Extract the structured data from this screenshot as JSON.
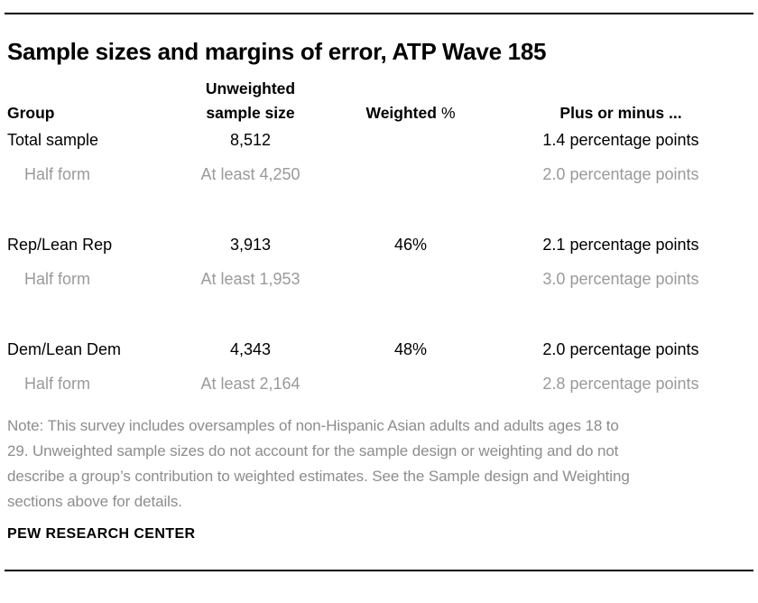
{
  "title": "Sample sizes and margins of error, ATP Wave 185",
  "table": {
    "headers": {
      "group": "Group",
      "unweighted_line1": "Unweighted",
      "unweighted_line2": "sample size",
      "weighted": "Weighted",
      "weighted_suffix": "%",
      "plus_minus": "Plus or minus ..."
    },
    "rows": [
      {
        "group": "Total sample",
        "unweighted": "8,512",
        "weighted": "",
        "moe": "1.4 percentage points"
      },
      {
        "group": "Half form",
        "unweighted": "At least 4,250",
        "weighted": "",
        "moe": "2.0 percentage points"
      },
      {
        "group": "Rep/Lean Rep",
        "unweighted": "3,913",
        "weighted": "46%",
        "moe": "2.1 percentage points"
      },
      {
        "group": "Half form",
        "unweighted": "At least 1,953",
        "weighted": "",
        "moe": "3.0 percentage points"
      },
      {
        "group": "Dem/Lean Dem",
        "unweighted": "4,343",
        "weighted": "48%",
        "moe": "2.0 percentage points"
      },
      {
        "group": "Half form",
        "unweighted": "At least 2,164",
        "weighted": "",
        "moe": "2.8 percentage points"
      }
    ]
  },
  "note": {
    "lines": [
      "Note: This survey includes oversamples of non-Hispanic Asian adults and adults ages 18 to",
      "29. Unweighted sample sizes do not account for the sample design or weighting and do not",
      "describe a group’s contribution to weighted estimates. See the Sample design and Weighting",
      "sections above for details."
    ]
  },
  "footer": {
    "brand": "PEW RESEARCH CENTER"
  },
  "colors": {
    "text": "#000000",
    "muted_text": "#9a9a9a",
    "note_text": "#8d8d8d",
    "rule": "#000000",
    "background": "#ffffff"
  },
  "chart_data": {
    "type": "table",
    "title": "Sample sizes and margins of error, ATP Wave 185",
    "columns": [
      "Group",
      "Unweighted sample size",
      "Weighted %",
      "Plus or minus ..."
    ],
    "rows": [
      [
        "Total sample",
        "8,512",
        "",
        "1.4 percentage points"
      ],
      [
        "Half form",
        "At least 4,250",
        "",
        "2.0 percentage points"
      ],
      [
        "Rep/Lean Rep",
        "3,913",
        "46%",
        "2.1 percentage points"
      ],
      [
        "Half form",
        "At least 1,953",
        "",
        "3.0 percentage points"
      ],
      [
        "Dem/Lean Dem",
        "4,343",
        "48%",
        "2.0 percentage points"
      ],
      [
        "Half form",
        "At least 2,164",
        "",
        "2.8 percentage points"
      ]
    ],
    "notes": "Note: This survey includes oversamples of non-Hispanic Asian adults and adults ages 18 to 29. Unweighted sample sizes do not account for the sample design or weighting and do not describe a group’s contribution to weighted estimates. See the Sample design and Weighting sections above for details.",
    "source": "PEW RESEARCH CENTER"
  }
}
